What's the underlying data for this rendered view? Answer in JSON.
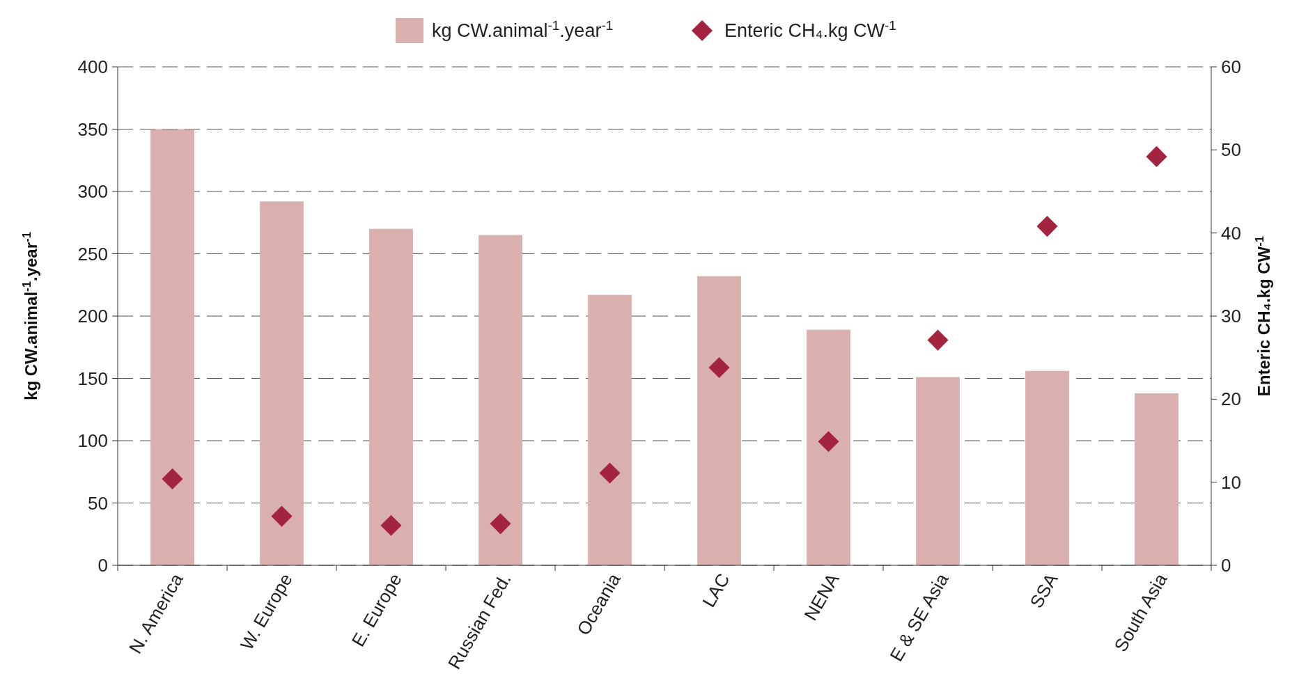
{
  "chart_data": {
    "type": "bar",
    "categories": [
      "N. America",
      "W. Europe",
      "E. Europe",
      "Russian Fed.",
      "Oceania",
      "LAC",
      "NENA",
      "E & SE Asia",
      "SSA",
      "South Asia"
    ],
    "series": [
      {
        "name": "kg CW.animal$^{-1}$.year$^{-1}$",
        "color": "#d9b0ae",
        "values": [
          350,
          292,
          270,
          265,
          217,
          232,
          189,
          151,
          156,
          138
        ]
      },
      {
        "name": "Enteric CH₄.kg CW$^{-1}$",
        "type": "scatter",
        "axis": "y2",
        "color": "#a3243f",
        "values": [
          10.4,
          5.9,
          4.8,
          5.0,
          11.1,
          23.8,
          14.9,
          27.1,
          40.8,
          49.2
        ]
      }
    ],
    "ylabel": "kg CW.animal$^{-1}$.year$^{-1}$",
    "y2label": "Enteric CH₄.kg CW$^{-1}$",
    "ylim": [
      0,
      400
    ],
    "yticks": [
      0,
      50,
      100,
      150,
      200,
      250,
      300,
      350,
      400
    ],
    "y2lim": [
      0,
      60
    ],
    "y2ticks": [
      0,
      10,
      20,
      30,
      40,
      50,
      60
    ],
    "grid": "y",
    "legend": "top",
    "marker": "diamond"
  }
}
